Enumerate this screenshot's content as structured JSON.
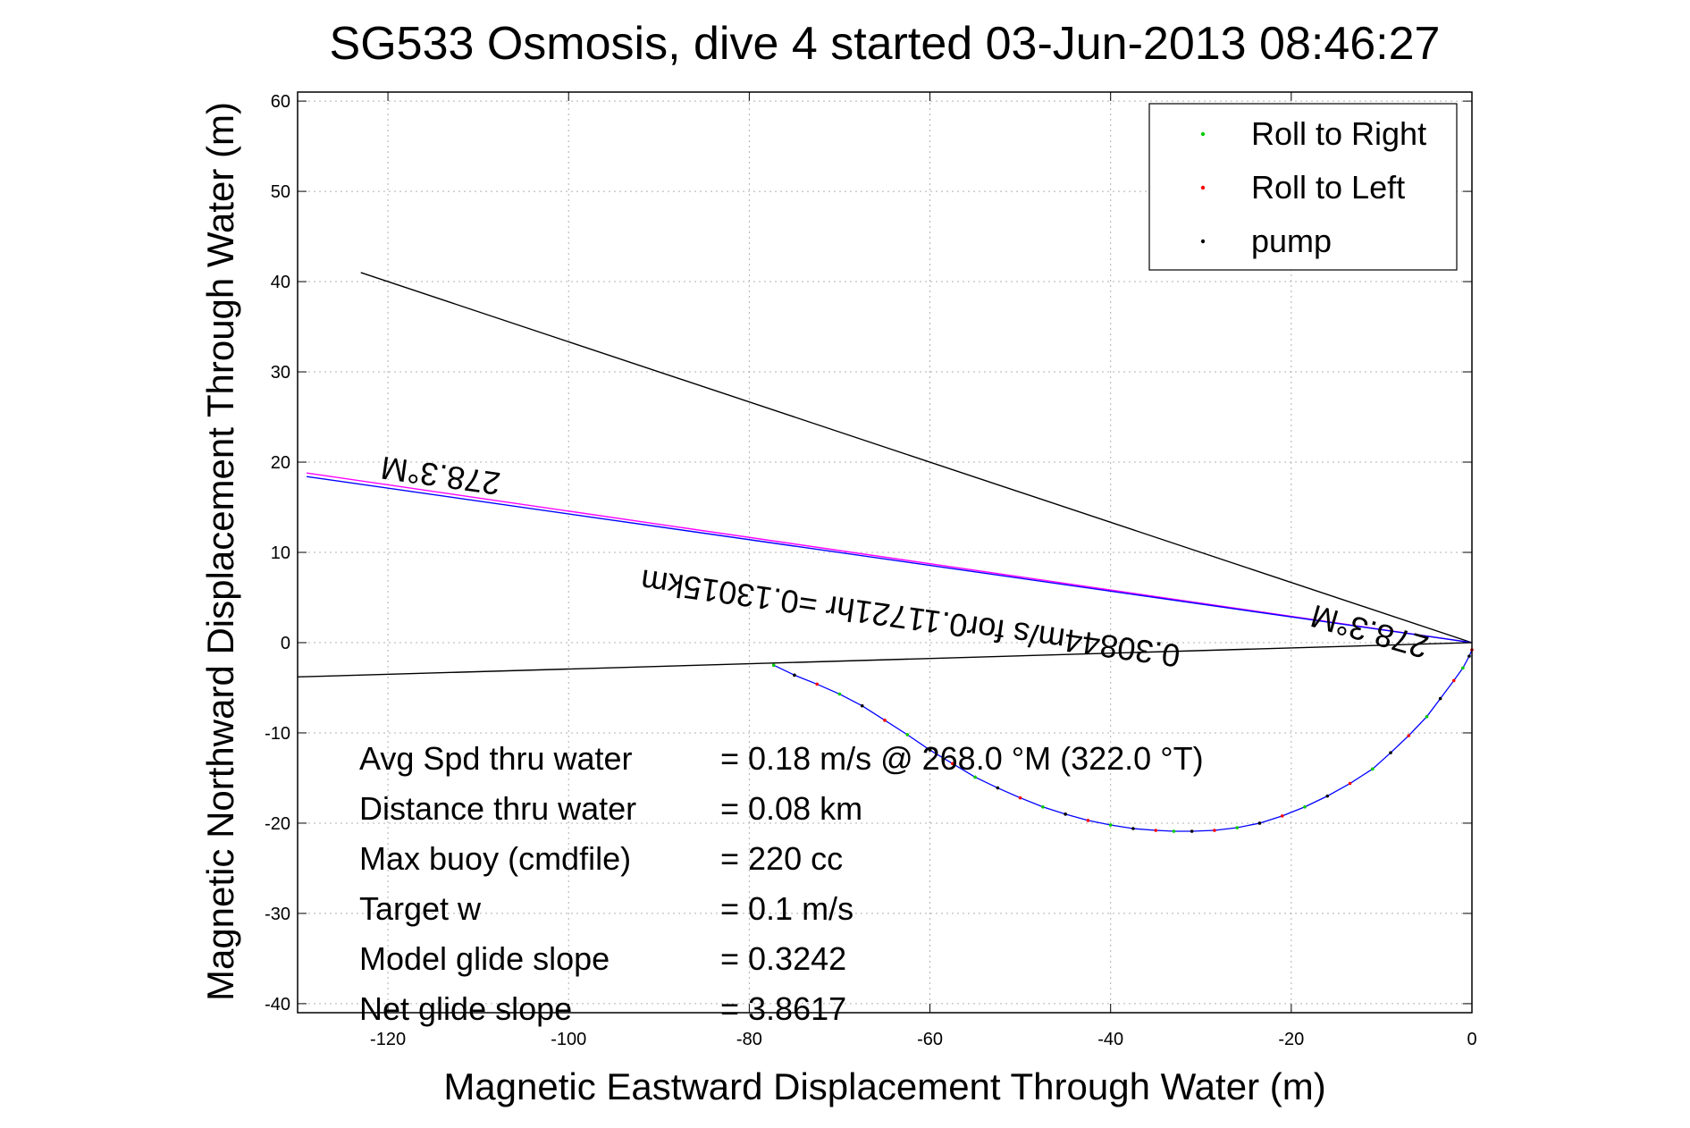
{
  "chart_data": {
    "type": "scatter",
    "title": "SG533 Osmosis, dive 4 started 03-Jun-2013 08:46:27",
    "xlabel": "Magnetic Eastward Displacement Through Water (m)",
    "ylabel": "Magnetic Northward Displacement Through Water (m)",
    "xlim": [
      -130,
      0
    ],
    "ylim": [
      -41,
      61
    ],
    "xticks": [
      -120,
      -100,
      -80,
      -60,
      -40,
      -20,
      0
    ],
    "yticks": [
      -40,
      -30,
      -20,
      -10,
      0,
      10,
      20,
      30,
      40,
      50,
      60
    ],
    "grid": true,
    "legend_position": "top-right",
    "legend": [
      {
        "label": "Roll to Right",
        "color": "#00cc00"
      },
      {
        "label": "Roll to Left",
        "color": "#ff0000"
      },
      {
        "label": "pump",
        "color": "#000000"
      }
    ],
    "track": {
      "color": "#0000ff",
      "x": [
        0,
        -0.3,
        -1,
        -2,
        -3.5,
        -5,
        -7,
        -9,
        -11,
        -13.5,
        -16,
        -18.5,
        -21,
        -23.5,
        -26,
        -28.5,
        -31,
        -33,
        -35,
        -37.5,
        -40,
        -42.5,
        -45,
        -47.5,
        -50,
        -52.5,
        -55,
        -57.5,
        -60,
        -62.5,
        -65,
        -67.5,
        -70,
        -72.5,
        -75,
        -77.3
      ],
      "y": [
        -0.8,
        -1.5,
        -2.8,
        -4.2,
        -6.2,
        -8.2,
        -10.3,
        -12.2,
        -14.0,
        -15.6,
        -17.0,
        -18.2,
        -19.2,
        -20.0,
        -20.5,
        -20.8,
        -20.9,
        -20.9,
        -20.8,
        -20.6,
        -20.2,
        -19.7,
        -19.0,
        -18.2,
        -17.2,
        -16.1,
        -14.9,
        -13.4,
        -11.9,
        -10.2,
        -8.6,
        -7.0,
        -5.7,
        -4.6,
        -3.6,
        -2.5
      ]
    },
    "lines": [
      {
        "name": "",
        "color": "#000000",
        "x": [
          0,
          -123
        ],
        "y": [
          0,
          41
        ]
      },
      {
        "name": "",
        "color": "#ff00ff",
        "x": [
          0,
          -129
        ],
        "y": [
          0,
          18.8
        ]
      },
      {
        "name": "",
        "color": "#0000ff",
        "x": [
          0,
          -129
        ],
        "y": [
          0,
          18.4
        ]
      },
      {
        "name": "",
        "color": "#000000",
        "x": [
          0,
          -130
        ],
        "y": [
          0,
          -3.8
        ]
      }
    ],
    "annotations": [
      {
        "text": "278.3°M",
        "x": -114,
        "y": 19.7,
        "angle": 188
      },
      {
        "text": "0.30844m/s for0.11721hr =0.13015km",
        "x": -62,
        "y": 3.9,
        "angle": 188
      },
      {
        "text": "278.3°M",
        "x": -11,
        "y": 2.4,
        "angle": 196
      }
    ],
    "stats": [
      {
        "label": "Avg Spd thru water",
        "value": "=  0.18 m/s @ 268.0 °M (322.0 °T)"
      },
      {
        "label": "Distance thru water",
        "value": "=  0.08 km"
      },
      {
        "label": "Max buoy (cmdfile)",
        "value": "= 220 cc"
      },
      {
        "label": "Target w",
        "value": "= 0.1 m/s"
      },
      {
        "label": "Model glide slope",
        "value": "= 0.3242"
      },
      {
        "label": "Net glide slope",
        "value": "= 3.8617"
      }
    ]
  }
}
